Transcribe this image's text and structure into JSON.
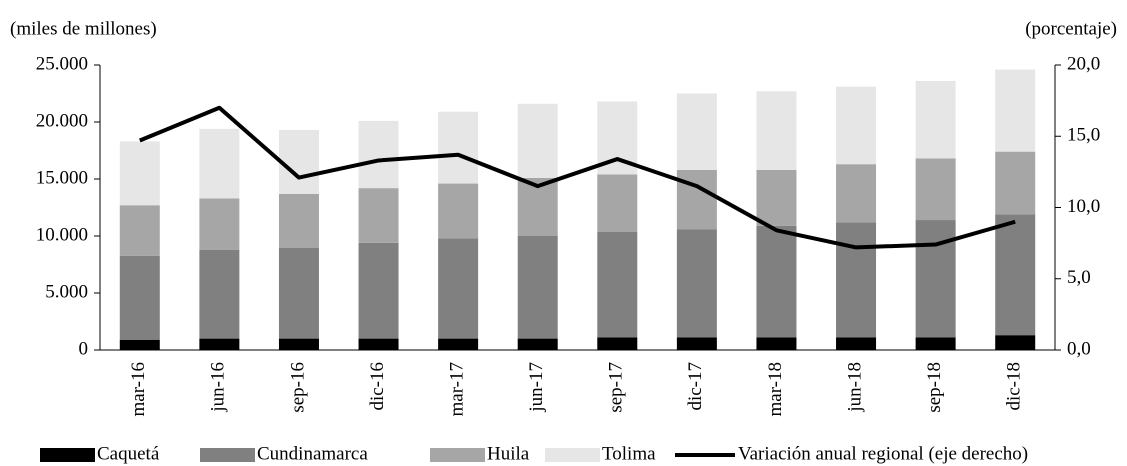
{
  "chart_data": {
    "type": "bar",
    "stacked": true,
    "y_label": "(miles  de millones)",
    "y2_label": "(porcentaje)",
    "categories": [
      "mar-16",
      "jun-16",
      "sep-16",
      "dic-16",
      "mar-17",
      "jun-17",
      "sep-17",
      "dic-17",
      "mar-18",
      "jun-18",
      "sep-18",
      "dic-18"
    ],
    "series": [
      {
        "name": "Caquetá",
        "color": "#000000",
        "values": [
          900,
          1000,
          1000,
          1000,
          1000,
          1000,
          1100,
          1100,
          1100,
          1100,
          1100,
          1300
        ]
      },
      {
        "name": "Cundinamarca",
        "color": "#808080",
        "values": [
          7350,
          7800,
          7950,
          8400,
          8800,
          9000,
          9250,
          9500,
          9800,
          10100,
          10300,
          10600
        ]
      },
      {
        "name": "Huila",
        "color": "#a6a6a6",
        "values": [
          4450,
          4500,
          4750,
          4800,
          4800,
          5100,
          5050,
          5200,
          4900,
          5100,
          5400,
          5500
        ]
      },
      {
        "name": "Tolima",
        "color": "#e6e6e6",
        "values": [
          5600,
          6100,
          5600,
          5900,
          6300,
          6500,
          6400,
          6700,
          6900,
          6800,
          6800,
          7200
        ]
      },
      {
        "name": "Variación anual regional (eje derecho)",
        "color": "#000000",
        "type": "line",
        "axis": "y2",
        "values": [
          14.7,
          17.0,
          12.1,
          13.3,
          13.7,
          11.5,
          13.4,
          11.5,
          8.4,
          7.2,
          7.4,
          9.0
        ]
      }
    ],
    "ylim": [
      0,
      25000
    ],
    "yticks": [
      0,
      {
        "value": 5000,
        "label": "5.000"
      },
      {
        "value": 10000,
        "label": "10.000"
      },
      {
        "value": 15000,
        "label": "15.000"
      },
      {
        "value": 20000,
        "label": "20.000"
      },
      {
        "value": 25000,
        "label": "25.000"
      }
    ],
    "y2lim": [
      0,
      20
    ],
    "y2ticks": [
      {
        "value": 0,
        "label": "0,0"
      },
      {
        "value": 5,
        "label": "5,0"
      },
      {
        "value": 10,
        "label": "10,0"
      },
      {
        "value": 15,
        "label": "15,0"
      },
      {
        "value": 20,
        "label": "20,0"
      }
    ],
    "legend": "bottom"
  }
}
